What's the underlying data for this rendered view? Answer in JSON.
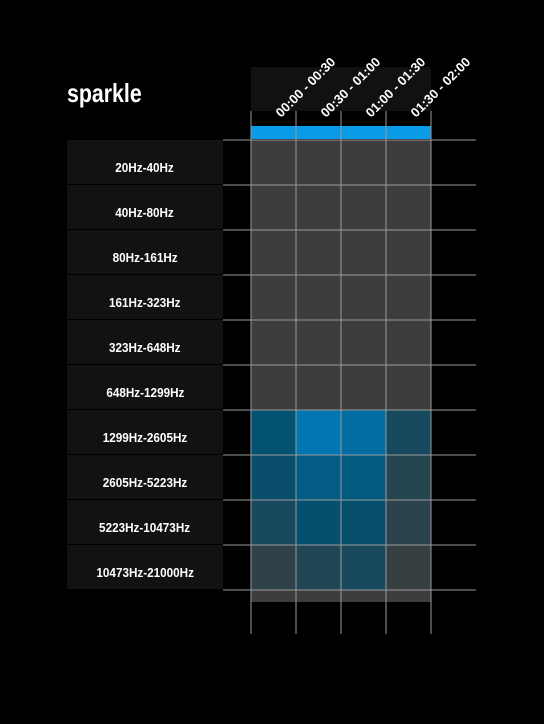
{
  "title": "sparkle",
  "chart_data": {
    "type": "heatmap",
    "title": "sparkle",
    "columns": [
      "00:00 - 00:30",
      "00:30 - 01:00",
      "01:00 - 01:30",
      "01:30 - 02:00"
    ],
    "rows": [
      "20Hz-40Hz",
      "40Hz-80Hz",
      "80Hz-161Hz",
      "161Hz-323Hz",
      "323Hz-648Hz",
      "648Hz-1299Hz",
      "1299Hz-2605Hz",
      "2605Hz-5223Hz",
      "5223Hz-10473Hz",
      "10473Hz-21000Hz"
    ],
    "values": [
      [
        0.0,
        0.0,
        0.0,
        0.0
      ],
      [
        0.0,
        0.0,
        0.0,
        0.0
      ],
      [
        0.0,
        0.0,
        0.0,
        0.0
      ],
      [
        0.0,
        0.0,
        0.0,
        0.0
      ],
      [
        0.0,
        0.0,
        0.0,
        0.0
      ],
      [
        0.0,
        0.0,
        0.0,
        0.0
      ],
      [
        0.62,
        0.92,
        0.85,
        0.4
      ],
      [
        0.55,
        0.7,
        0.68,
        0.25
      ],
      [
        0.38,
        0.6,
        0.58,
        0.2
      ],
      [
        0.15,
        0.3,
        0.38,
        0.05
      ]
    ],
    "grid": true,
    "colors": {
      "background": "#000000",
      "empty_cell": "#3d3d3d",
      "accent": "#0a9be8",
      "grid": "#9a9a9a",
      "label_bg": "#121212"
    }
  }
}
